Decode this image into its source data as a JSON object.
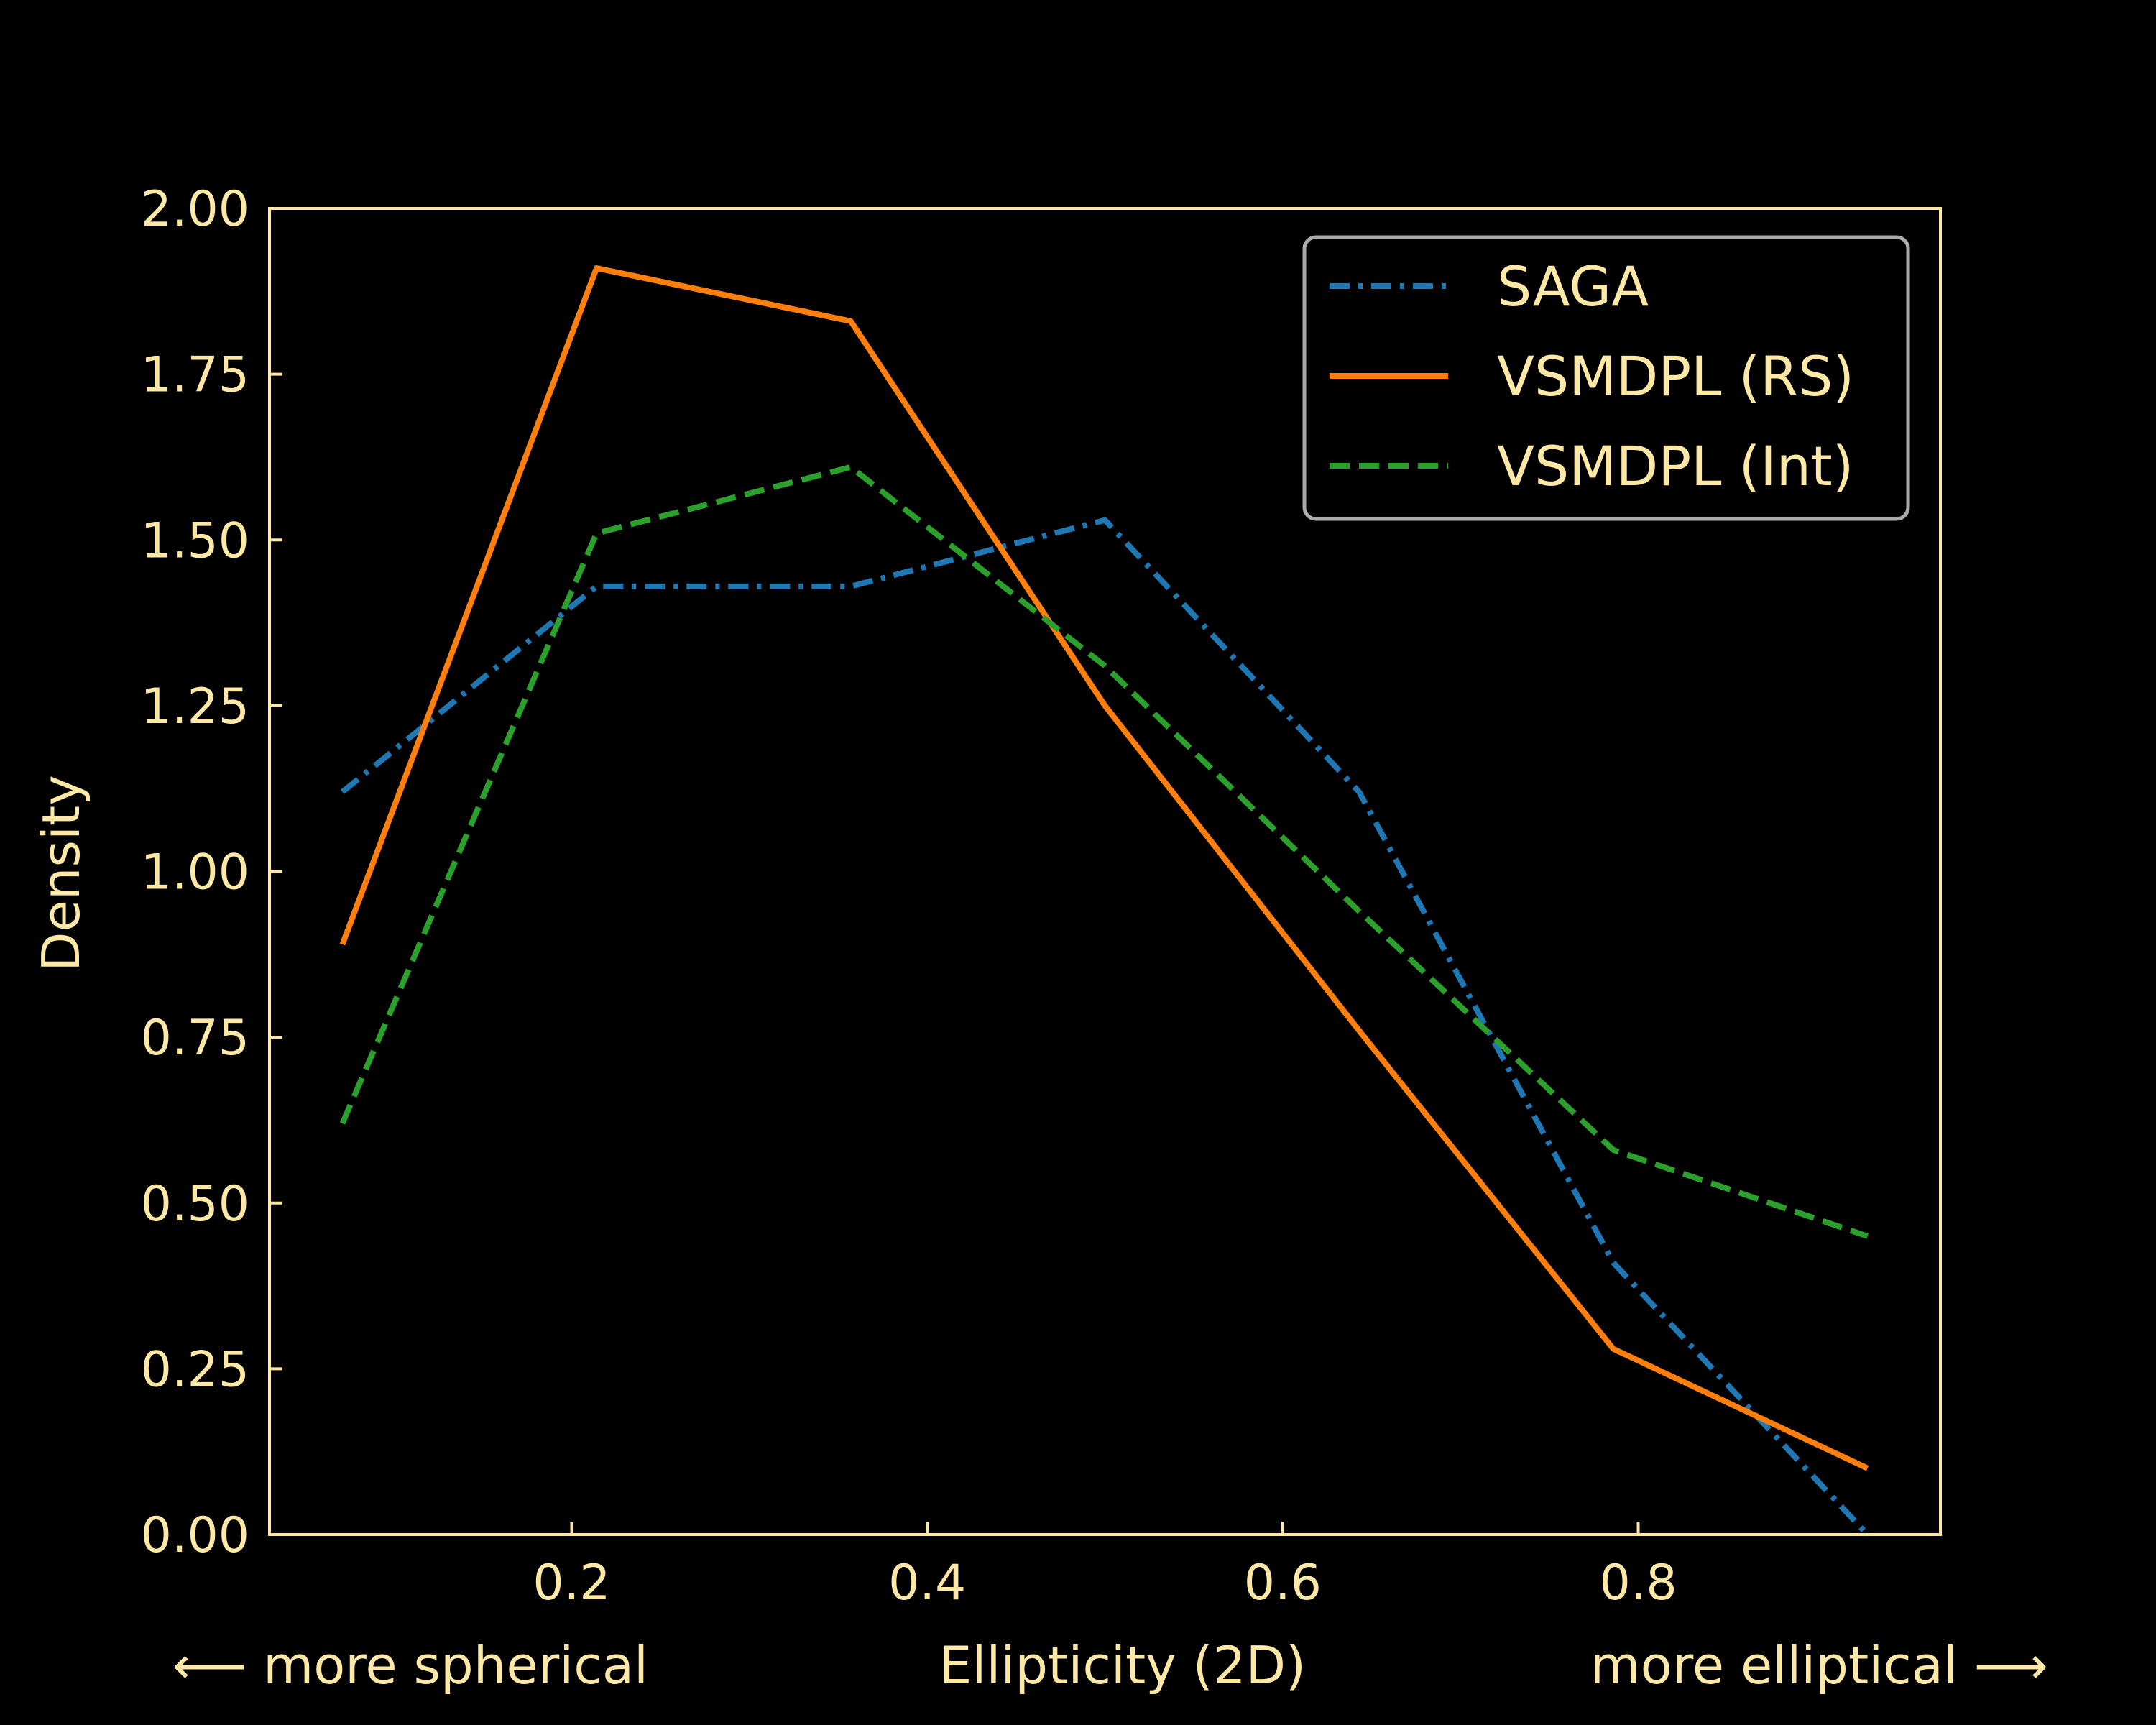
{
  "chart_data": {
    "type": "line",
    "xlabel": "Ellipticity (2D)",
    "xlabel_left": "⟵  more spherical",
    "xlabel_right": "more elliptical  ⟶",
    "ylabel": "Density",
    "xlim": [
      0.03,
      0.97
    ],
    "ylim": [
      0.0,
      2.0
    ],
    "xticks": [
      0.2,
      0.4,
      0.6,
      0.8
    ],
    "xtick_labels": [
      "0.2",
      "0.4",
      "0.6",
      "0.8"
    ],
    "yticks": [
      0.0,
      0.25,
      0.5,
      0.75,
      1.0,
      1.25,
      1.5,
      1.75,
      2.0
    ],
    "ytick_labels": [
      "0.00",
      "0.25",
      "0.50",
      "0.75",
      "1.00",
      "1.25",
      "1.50",
      "1.75",
      "2.00"
    ],
    "grid": false,
    "legend_position": "top-right",
    "x": [
      0.071,
      0.214,
      0.357,
      0.5,
      0.643,
      0.786,
      0.929
    ],
    "series": [
      {
        "name": "SAGA",
        "values": [
          1.12,
          1.43,
          1.43,
          1.53,
          1.12,
          0.41,
          0.0
        ],
        "color": "#1f77b4",
        "dash": "dashdot"
      },
      {
        "name": "VSMDPL (RS)",
        "values": [
          0.89,
          1.91,
          1.83,
          1.25,
          0.76,
          0.28,
          0.1
        ],
        "color": "#ff7f0e",
        "dash": "solid"
      },
      {
        "name": "VSMDPL (Int)",
        "values": [
          0.62,
          1.51,
          1.61,
          1.31,
          0.94,
          0.58,
          0.45
        ],
        "color": "#2ca02c",
        "dash": "dashed"
      }
    ],
    "axis_color": "#fde8a6",
    "legend_border_color": "#aaaaaa",
    "background": "#000000"
  }
}
